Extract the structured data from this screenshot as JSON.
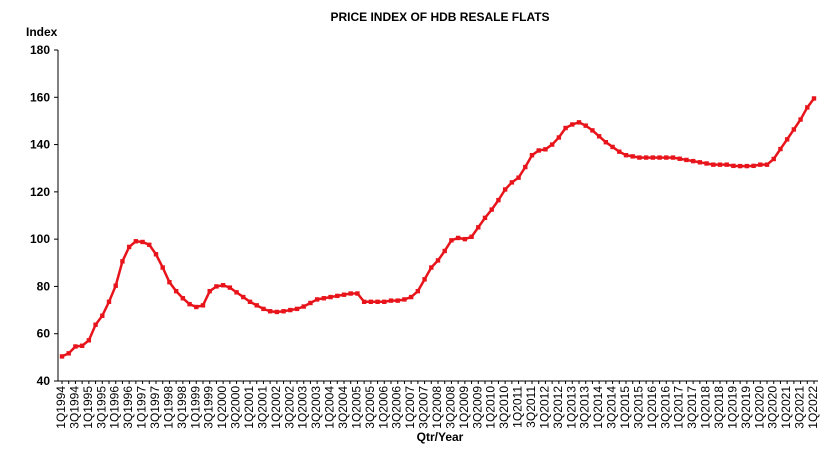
{
  "chart_data": {
    "type": "line",
    "title": "PRICE INDEX OF HDB RESALE FLATS",
    "y_label": "Index",
    "x_label": "Qtr/Year",
    "color": "#e8141b",
    "categories": [
      "1Q1994",
      null,
      "3Q1994",
      null,
      "1Q1995",
      null,
      "3Q1995",
      null,
      "1Q1996",
      null,
      "3Q1996",
      null,
      "1Q1997",
      null,
      "3Q1997",
      null,
      "1Q1998",
      null,
      "3Q1998",
      null,
      "1Q1999",
      null,
      "3Q1999",
      null,
      "1Q2000",
      null,
      "3Q2000",
      null,
      "1Q2001",
      null,
      "3Q2001",
      null,
      "1Q2002",
      null,
      "3Q2002",
      null,
      "1Q2003",
      null,
      "3Q2003",
      null,
      "1Q2004",
      null,
      "3Q2004",
      null,
      "1Q2005",
      null,
      "3Q2005",
      null,
      "1Q2006",
      null,
      "3Q2006",
      null,
      "1Q2007",
      null,
      "3Q2007",
      null,
      "1Q2008",
      null,
      "3Q2008",
      null,
      "1Q2009",
      null,
      "3Q2009",
      null,
      "1Q2010",
      null,
      "3Q2010",
      null,
      "1Q2011",
      null,
      "3Q2011",
      null,
      "1Q2012",
      null,
      "3Q2012",
      null,
      "1Q2013",
      null,
      "3Q2013",
      null,
      "1Q2014",
      null,
      "3Q2014",
      null,
      "1Q2015",
      null,
      "3Q2015",
      null,
      "1Q2016",
      null,
      "3Q2016",
      null,
      "1Q2017",
      null,
      "3Q2017",
      null,
      "1Q2018",
      null,
      "3Q2018",
      null,
      "1Q2019",
      null,
      "3Q2019",
      null,
      "1Q2020",
      null,
      "3Q2020",
      null,
      "1Q2021",
      null,
      "3Q2021",
      null,
      "1Q2022"
    ],
    "values": [
      50.4,
      51.7,
      54.6,
      54.9,
      57.2,
      63.8,
      67.6,
      73.5,
      80.3,
      90.6,
      96.7,
      99.1,
      98.8,
      97.6,
      93.6,
      88,
      81.8,
      78,
      75,
      72.5,
      71.3,
      72,
      78,
      80,
      80.5,
      79.5,
      77.5,
      75.5,
      73.5,
      72,
      70.5,
      69.5,
      69.2,
      69.5,
      70,
      70.5,
      71.5,
      73,
      74.5,
      75,
      75.5,
      76,
      76.5,
      77,
      77,
      73.5,
      73.5,
      73.5,
      73.5,
      74,
      74,
      74.5,
      75.5,
      78,
      83,
      88,
      91,
      95,
      99.5,
      100.5,
      100,
      101,
      105,
      109,
      112.5,
      116.5,
      121,
      124,
      126,
      130.5,
      135.5,
      137.5,
      138,
      140,
      143,
      147,
      148.5,
      149.4,
      148,
      146,
      143.5,
      141,
      139,
      137,
      135.5,
      135,
      134.5,
      134.5,
      134.5,
      134.5,
      134.5,
      134.5,
      134,
      133.5,
      133,
      132.5,
      132,
      131.5,
      131.5,
      131.5,
      131,
      130.9,
      130.9,
      131,
      131.5,
      131.5,
      133.9,
      138.1,
      142.2,
      146.4,
      150.6,
      155.7,
      159.5
    ],
    "ylim": [
      40,
      180
    ],
    "yticks": [
      40,
      60,
      80,
      100,
      120,
      140,
      160,
      180
    ]
  }
}
